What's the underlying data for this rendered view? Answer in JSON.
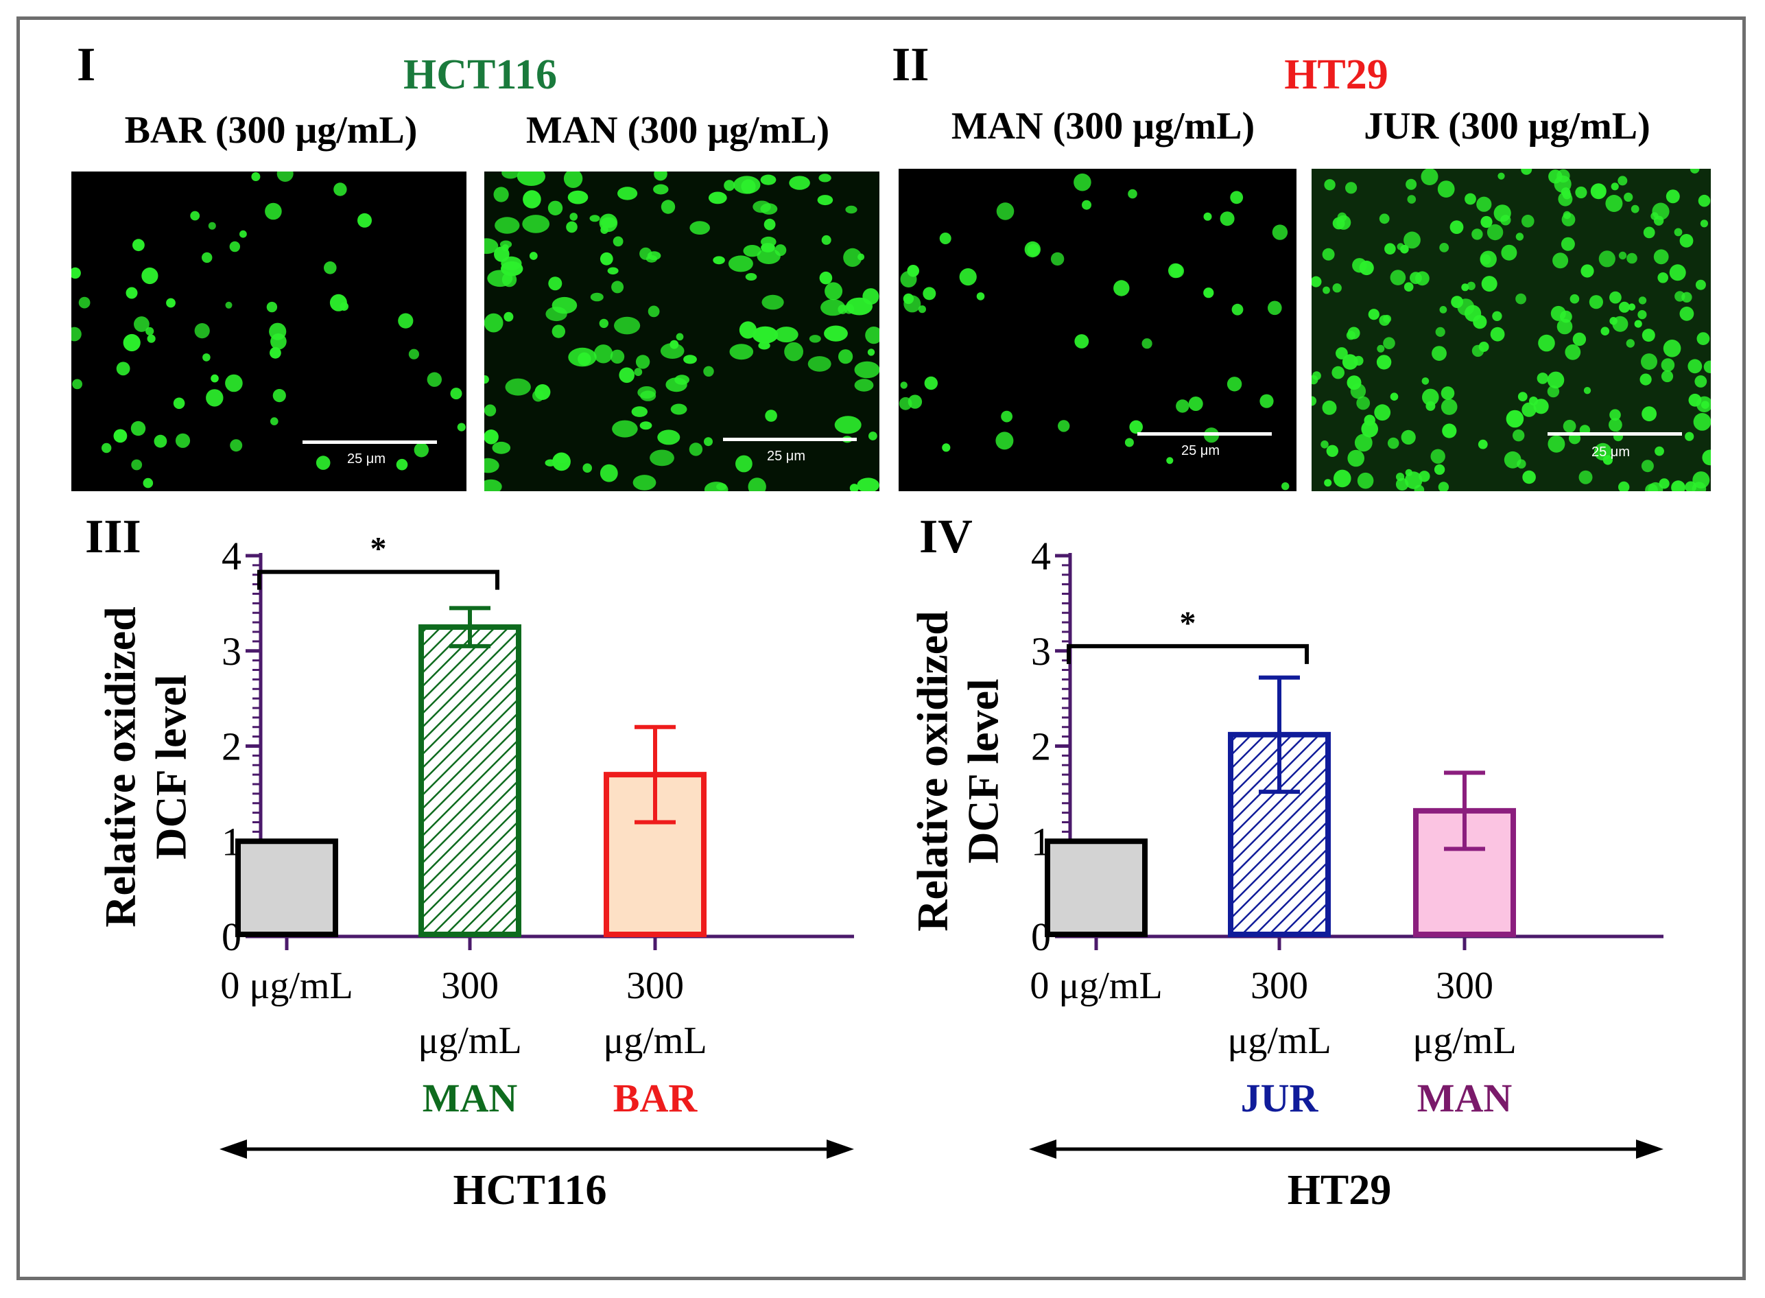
{
  "figure": {
    "panel_labels": {
      "p1": "I",
      "p2": "II",
      "p3": "III",
      "p4": "IV"
    },
    "cell_lines": {
      "left": "HCT116",
      "right": "HT29"
    },
    "colors": {
      "hct116_title": "#1a7a3c",
      "ht29_title": "#ee1c1c",
      "frame": "#6e6e6e",
      "axis": "#4b1a6b",
      "cell_green": "#2cf02c"
    }
  },
  "microscopy": [
    {
      "label": "BAR (300 μg/mL)",
      "scale": "25 μm",
      "cell_line": "HCT116"
    },
    {
      "label": "MAN (300 μg/mL)",
      "scale": "25 μm",
      "cell_line": "HCT116"
    },
    {
      "label": "MAN (300 μg/mL)",
      "scale": "25 μm",
      "cell_line": "HT29"
    },
    {
      "label": "JUR (300 μg/mL)",
      "scale": "25 μm",
      "cell_line": "HT29"
    }
  ],
  "chart_data": [
    {
      "type": "bar",
      "panel": "III",
      "ylabel": [
        "Relative oxidized",
        "DCF level"
      ],
      "ylim": [
        0,
        4
      ],
      "yticks": [
        "0",
        "1",
        "2",
        "3",
        "4"
      ],
      "categories": [
        {
          "line1": "0 μg/mL",
          "line2": "",
          "treatment": ""
        },
        {
          "line1": "300",
          "line2": "μg/mL",
          "treatment": "MAN"
        },
        {
          "line1": "300",
          "line2": "μg/mL",
          "treatment": "BAR"
        }
      ],
      "values": [
        1.0,
        3.25,
        1.7
      ],
      "errors": [
        0,
        0.2,
        0.5
      ],
      "fills": [
        "#d3d3d3",
        "#ffffff",
        "#fde0c5"
      ],
      "strokes": [
        "#000000",
        "#0e6b1e",
        "#ee1c1c"
      ],
      "hatched": [
        false,
        true,
        false
      ],
      "hatch_color": "#0e6b1e",
      "treatment_colors": [
        "#000000",
        "#0e6b1e",
        "#ee1c1c"
      ],
      "significance": {
        "from": 0,
        "to": 1,
        "label": "*",
        "level": 3.83
      },
      "group_label": "HCT116"
    },
    {
      "type": "bar",
      "panel": "IV",
      "ylabel": [
        "Relative oxidized",
        "DCF level"
      ],
      "ylim": [
        0,
        4
      ],
      "yticks": [
        "0",
        "1",
        "2",
        "3",
        "4"
      ],
      "categories": [
        {
          "line1": "0 μg/mL",
          "line2": "",
          "treatment": ""
        },
        {
          "line1": "300",
          "line2": "μg/mL",
          "treatment": "JUR"
        },
        {
          "line1": "300",
          "line2": "μg/mL",
          "treatment": "MAN"
        }
      ],
      "values": [
        1.0,
        2.12,
        1.32
      ],
      "errors": [
        0,
        0.6,
        0.4
      ],
      "fills": [
        "#d3d3d3",
        "#ffffff",
        "#fbc4e2"
      ],
      "strokes": [
        "#000000",
        "#101c9a",
        "#8b1e7e"
      ],
      "hatched": [
        false,
        true,
        false
      ],
      "hatch_color": "#101c9a",
      "treatment_colors": [
        "#000000",
        "#101c9a",
        "#7a1a6a"
      ],
      "significance": {
        "from": 0,
        "to": 1,
        "label": "*",
        "level": 3.05
      },
      "group_label": "HT29"
    }
  ]
}
